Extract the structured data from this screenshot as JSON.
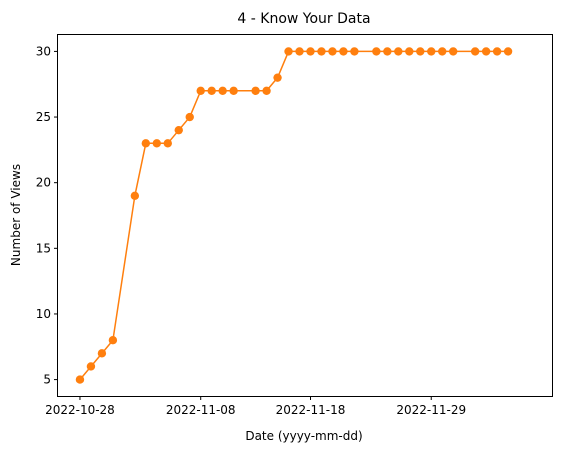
{
  "chart_data": {
    "type": "line",
    "title": "4 - Know Your Data",
    "xlabel": "Date (yyyy-mm-dd)",
    "ylabel": "Number of Views",
    "x_ticks": [
      "2022-10-28",
      "2022-11-08",
      "2022-11-18",
      "2022-11-29"
    ],
    "y_ticks": [
      5,
      10,
      15,
      20,
      25,
      30
    ],
    "xlim": [
      "2022-10-26",
      "2022-12-10"
    ],
    "ylim": [
      3.75,
      31.25
    ],
    "grid": false,
    "legend": "none",
    "series": [
      {
        "color": "#ff7f0e",
        "marker": "circle",
        "points": [
          {
            "x": "2022-10-28",
            "y": 5
          },
          {
            "x": "2022-10-29",
            "y": 6
          },
          {
            "x": "2022-10-30",
            "y": 7
          },
          {
            "x": "2022-10-31",
            "y": 8
          },
          {
            "x": "2022-11-02",
            "y": 19
          },
          {
            "x": "2022-11-03",
            "y": 23
          },
          {
            "x": "2022-11-04",
            "y": 23
          },
          {
            "x": "2022-11-05",
            "y": 23
          },
          {
            "x": "2022-11-06",
            "y": 24
          },
          {
            "x": "2022-11-07",
            "y": 25
          },
          {
            "x": "2022-11-08",
            "y": 27
          },
          {
            "x": "2022-11-09",
            "y": 27
          },
          {
            "x": "2022-11-10",
            "y": 27
          },
          {
            "x": "2022-11-11",
            "y": 27
          },
          {
            "x": "2022-11-13",
            "y": 27
          },
          {
            "x": "2022-11-14",
            "y": 27
          },
          {
            "x": "2022-11-15",
            "y": 28
          },
          {
            "x": "2022-11-16",
            "y": 30
          },
          {
            "x": "2022-11-17",
            "y": 30
          },
          {
            "x": "2022-11-18",
            "y": 30
          },
          {
            "x": "2022-11-19",
            "y": 30
          },
          {
            "x": "2022-11-20",
            "y": 30
          },
          {
            "x": "2022-11-21",
            "y": 30
          },
          {
            "x": "2022-11-22",
            "y": 30
          },
          {
            "x": "2022-11-24",
            "y": 30
          },
          {
            "x": "2022-11-25",
            "y": 30
          },
          {
            "x": "2022-11-26",
            "y": 30
          },
          {
            "x": "2022-11-27",
            "y": 30
          },
          {
            "x": "2022-11-28",
            "y": 30
          },
          {
            "x": "2022-11-29",
            "y": 30
          },
          {
            "x": "2022-11-30",
            "y": 30
          },
          {
            "x": "2022-12-01",
            "y": 30
          },
          {
            "x": "2022-12-03",
            "y": 30
          },
          {
            "x": "2022-12-04",
            "y": 30
          },
          {
            "x": "2022-12-05",
            "y": 30
          },
          {
            "x": "2022-12-06",
            "y": 30
          }
        ]
      }
    ]
  }
}
